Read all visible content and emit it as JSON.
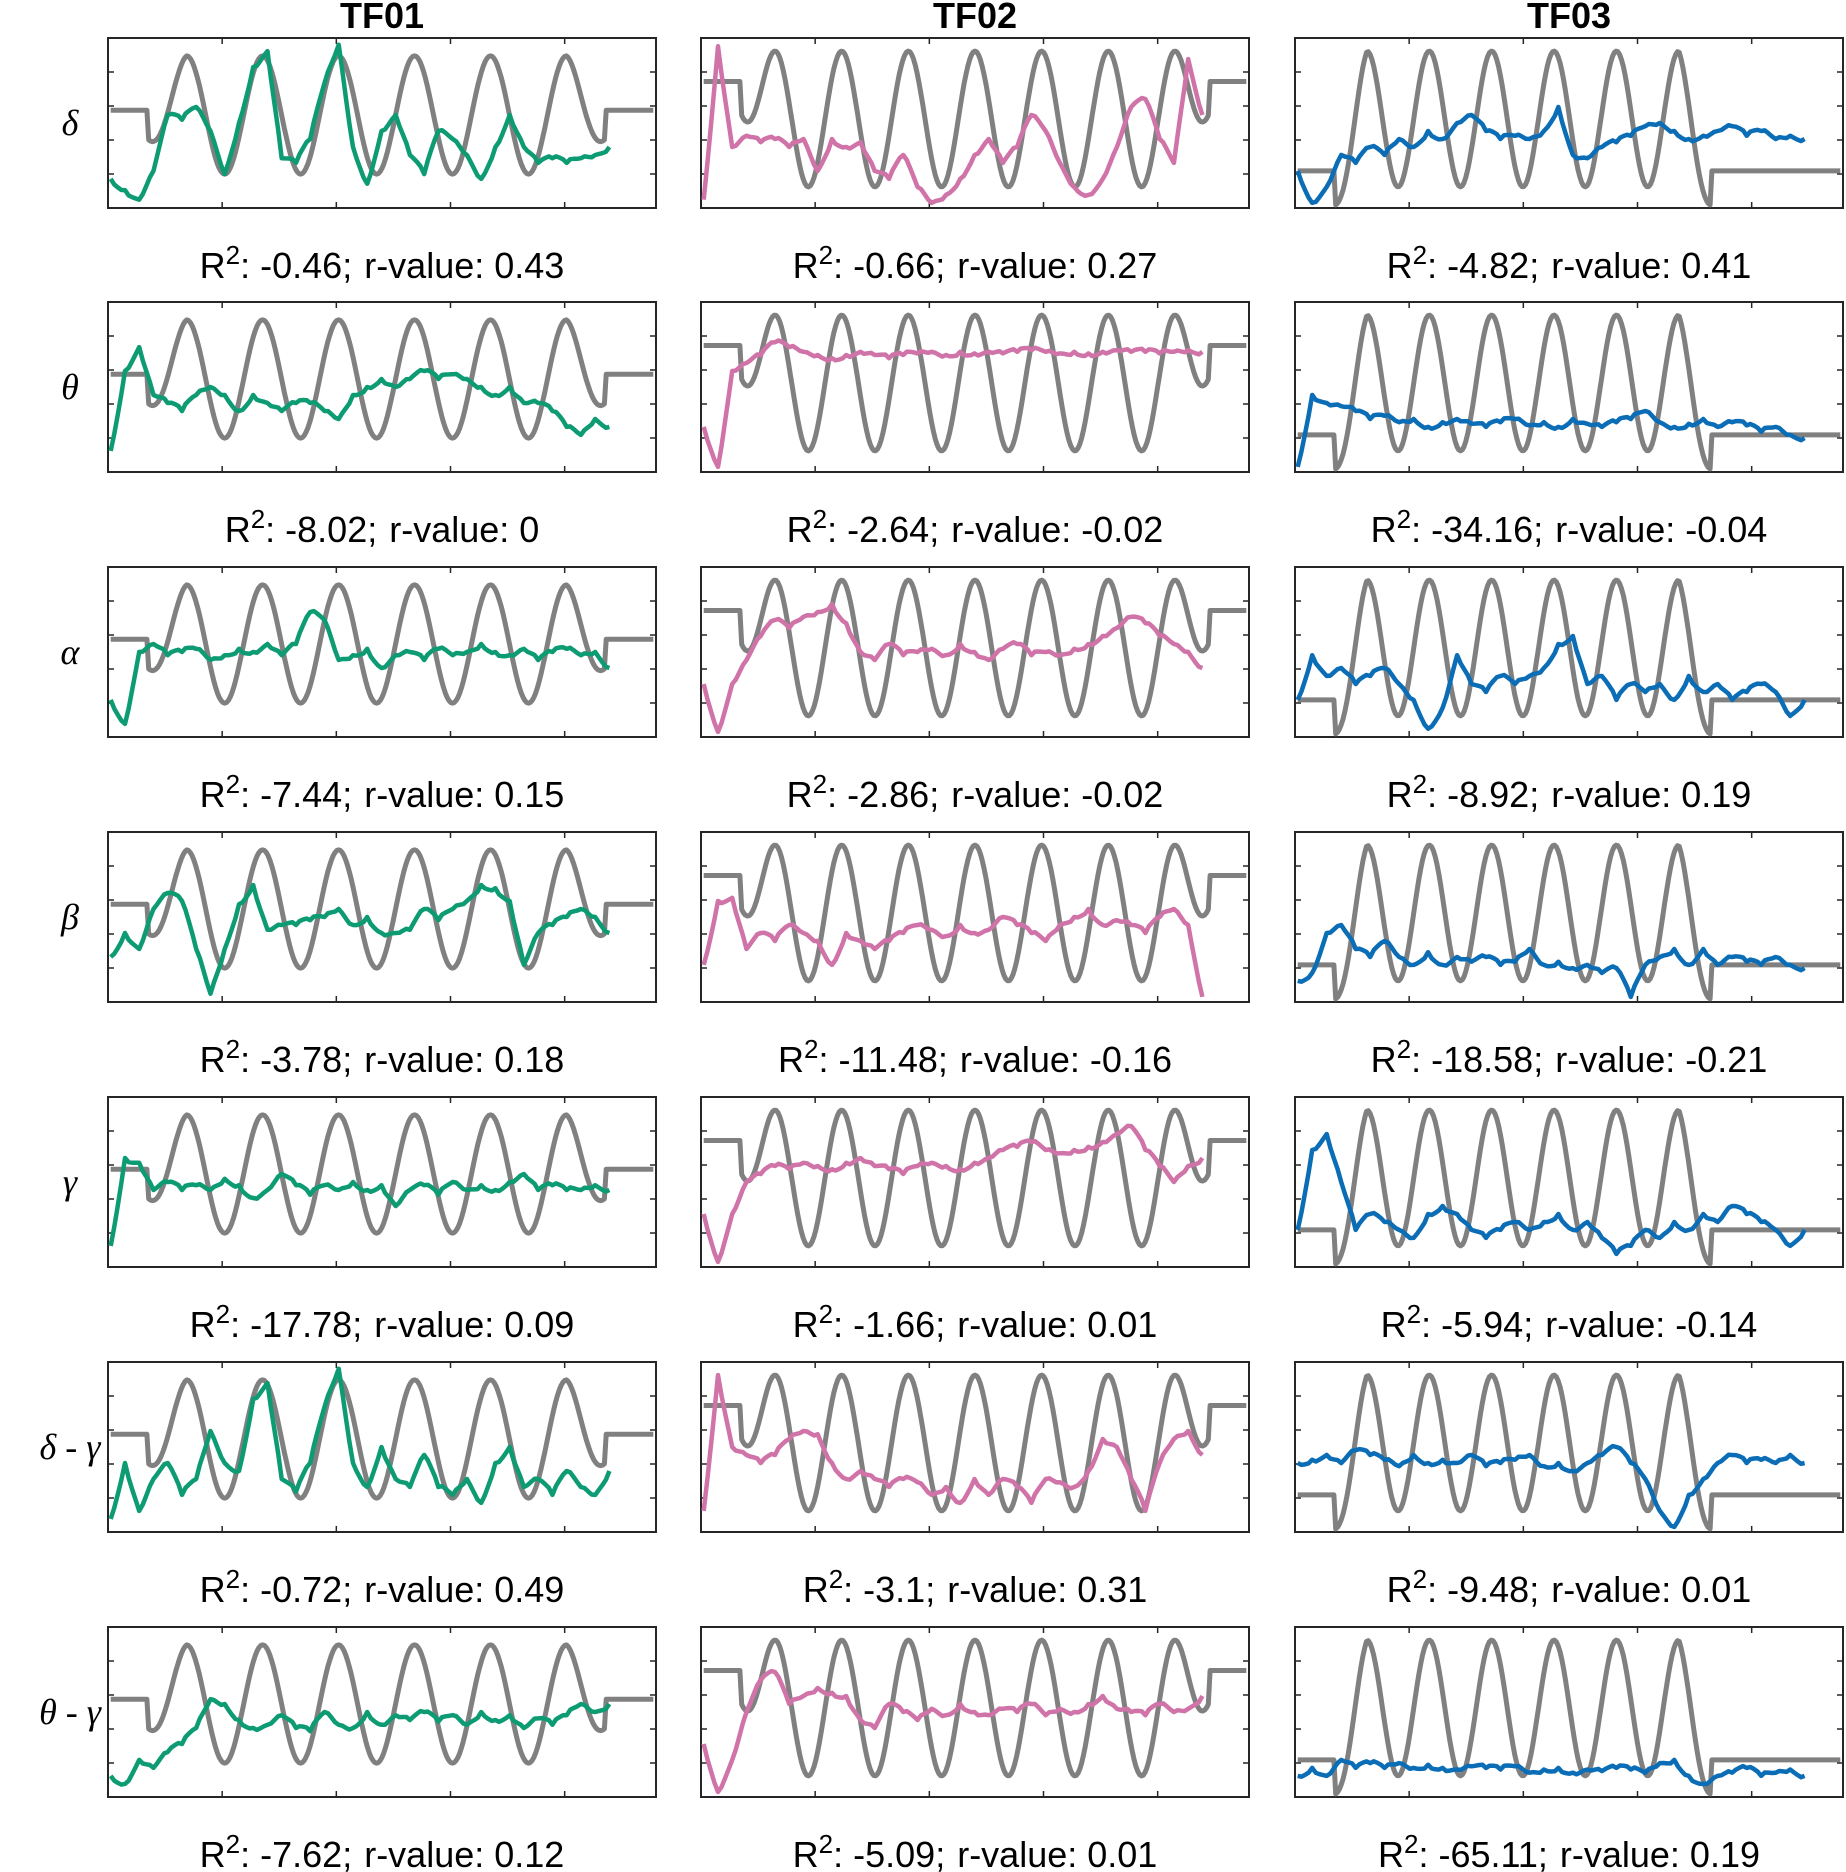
{
  "chart_data": {
    "type": "line",
    "columns": [
      "TF01",
      "TF02",
      "TF03"
    ],
    "rows": [
      "δ",
      "θ",
      "α",
      "β",
      "γ",
      "δ - γ",
      "θ - γ"
    ],
    "r2_label": "R",
    "r2_sup": "2",
    "r_label": "r-value",
    "stats": [
      [
        {
          "r2": "-0.46",
          "r": "0.43"
        },
        {
          "r2": "-0.66",
          "r": "0.27"
        },
        {
          "r2": "-4.82",
          "r": "0.41"
        }
      ],
      [
        {
          "r2": "-8.02",
          "r": "0"
        },
        {
          "r2": "-2.64",
          "r": "-0.02"
        },
        {
          "r2": "-34.16",
          "r": "-0.04"
        }
      ],
      [
        {
          "r2": "-7.44",
          "r": "0.15"
        },
        {
          "r2": "-2.86",
          "r": "-0.02"
        },
        {
          "r2": "-8.92",
          "r": "0.19"
        }
      ],
      [
        {
          "r2": "-3.78",
          "r": "0.18"
        },
        {
          "r2": "-11.48",
          "r": "-0.16"
        },
        {
          "r2": "-18.58",
          "r": "-0.21"
        }
      ],
      [
        {
          "r2": "-17.78",
          "r": "0.09"
        },
        {
          "r2": "-1.66",
          "r": "0.01"
        },
        {
          "r2": "-5.94",
          "r": "-0.14"
        }
      ],
      [
        {
          "r2": "-0.72",
          "r": "0.49"
        },
        {
          "r2": "-3.1",
          "r": "0.31"
        },
        {
          "r2": "-9.48",
          "r": "0.01"
        }
      ],
      [
        {
          "r2": "-7.62",
          "r": "0.12"
        },
        {
          "r2": "-5.09",
          "r": "0.01"
        },
        {
          "r2": "-65.11",
          "r": "0.19"
        }
      ]
    ],
    "reference": [
      {
        "baseline": 0.58,
        "peak": 0.92,
        "trough": 0.18,
        "start": 0.07,
        "end": 0.91,
        "cycles": 6
      },
      {
        "baseline": 0.76,
        "peak": 0.95,
        "trough": 0.1,
        "start": 0.07,
        "end": 0.93,
        "cycles": 7
      },
      {
        "baseline": 0.2,
        "peak": 0.95,
        "trough": 0.1,
        "start": 0.07,
        "end": 0.76,
        "cycles": 6
      }
    ],
    "predicted": [
      [
        [
          0.15,
          0.08,
          0.02,
          0.2,
          0.55,
          0.52,
          0.6,
          0.45,
          0.18,
          0.5,
          0.85,
          0.95,
          0.28,
          0.25,
          0.4,
          0.75,
          0.99,
          0.35,
          0.12,
          0.45,
          0.55,
          0.3,
          0.18,
          0.45,
          0.4,
          0.3,
          0.15,
          0.35,
          0.55,
          0.35,
          0.25,
          0.28,
          0.25,
          0.28,
          0.3,
          0.35
        ],
        [
          0.1,
          0.6,
          0.75,
          0.45,
          0.4,
          0.35,
          0.45,
          0.5,
          0.45,
          0.35,
          0.45,
          0.4,
          0.35,
          0.4,
          0.4,
          0.35,
          0.3,
          0.45,
          0.5,
          0.55,
          0.5,
          0.55,
          0.6,
          0.55,
          0.58,
          0.55,
          0.5,
          0.45,
          0.5,
          0.4,
          0.4,
          0.35,
          0.25,
          0.2,
          0.3,
          0.25
        ],
        [
          0.2,
          0.05,
          0.5,
          0.55,
          0.48,
          0.5,
          0.52,
          0.45,
          0.48,
          0.52,
          0.5,
          0.55,
          0.48,
          0.55,
          0.75,
          0.7,
          0.45,
          0.48,
          0.52,
          0.4,
          0.48,
          0.5,
          0.45,
          0.52,
          0.48,
          0.5,
          0.55,
          0.5,
          0.48,
          0.52,
          0.45,
          0.5,
          0.52,
          0.48,
          0.5,
          0.4
        ],
        [
          0.25,
          0.4,
          0.3,
          0.55,
          0.65,
          0.6,
          0.3,
          0.02,
          0.3,
          0.58,
          0.7,
          0.42,
          0.45,
          0.45,
          0.48,
          0.5,
          0.55,
          0.45,
          0.5,
          0.4,
          0.4,
          0.42,
          0.55,
          0.48,
          0.55,
          0.6,
          0.7,
          0.68,
          0.6,
          0.2,
          0.4,
          0.45,
          0.5,
          0.55,
          0.5,
          0.4
        ],
        [
          0.1,
          0.65,
          0.62,
          0.45,
          0.5,
          0.45,
          0.48,
          0.45,
          0.52,
          0.48,
          0.4,
          0.45,
          0.55,
          0.48,
          0.42,
          0.48,
          0.45,
          0.5,
          0.45,
          0.48,
          0.35,
          0.45,
          0.48,
          0.42,
          0.5,
          0.45,
          0.48,
          0.45,
          0.5,
          0.55,
          0.45,
          0.48,
          0.45,
          0.45,
          0.48,
          0.45
        ],
        [
          0.05,
          0.4,
          0.1,
          0.3,
          0.4,
          0.2,
          0.3,
          0.6,
          0.4,
          0.35,
          0.8,
          0.9,
          0.3,
          0.22,
          0.4,
          0.75,
          0.99,
          0.4,
          0.25,
          0.5,
          0.3,
          0.25,
          0.45,
          0.25,
          0.2,
          0.3,
          0.15,
          0.4,
          0.5,
          0.25,
          0.3,
          0.2,
          0.35,
          0.25,
          0.2,
          0.35
        ],
        [
          0.1,
          0.05,
          0.2,
          0.15,
          0.25,
          0.3,
          0.4,
          0.58,
          0.55,
          0.45,
          0.4,
          0.42,
          0.48,
          0.4,
          0.38,
          0.5,
          0.42,
          0.4,
          0.5,
          0.42,
          0.48,
          0.45,
          0.5,
          0.44,
          0.48,
          0.42,
          0.5,
          0.45,
          0.48,
          0.4,
          0.46,
          0.42,
          0.48,
          0.55,
          0.5,
          0.55
        ]
      ],
      [
        [
          0.02,
          0.98,
          0.35,
          0.42,
          0.38,
          0.4,
          0.35,
          0.4,
          0.2,
          0.4,
          0.35,
          0.38,
          0.2,
          0.15,
          0.3,
          0.1,
          0.0,
          0.05,
          0.15,
          0.3,
          0.4,
          0.25,
          0.35,
          0.55,
          0.45,
          0.25,
          0.1,
          0.05,
          0.15,
          0.35,
          0.6,
          0.65,
          0.4,
          0.25,
          0.9,
          0.55
        ],
        [
          0.25,
          0.0,
          0.6,
          0.65,
          0.7,
          0.78,
          0.75,
          0.72,
          0.7,
          0.68,
          0.7,
          0.72,
          0.7,
          0.68,
          0.7,
          0.71,
          0.72,
          0.7,
          0.72,
          0.71,
          0.72,
          0.71,
          0.72,
          0.73,
          0.72,
          0.71,
          0.72,
          0.71,
          0.72,
          0.73,
          0.72,
          0.72,
          0.71,
          0.72,
          0.73,
          0.72
        ],
        [
          0.3,
          0.0,
          0.3,
          0.45,
          0.6,
          0.7,
          0.65,
          0.72,
          0.75,
          0.8,
          0.68,
          0.5,
          0.45,
          0.55,
          0.48,
          0.5,
          0.52,
          0.48,
          0.55,
          0.5,
          0.45,
          0.52,
          0.55,
          0.48,
          0.5,
          0.48,
          0.52,
          0.55,
          0.6,
          0.65,
          0.72,
          0.68,
          0.6,
          0.55,
          0.5,
          0.4
        ],
        [
          0.2,
          0.6,
          0.62,
          0.3,
          0.4,
          0.35,
          0.45,
          0.4,
          0.35,
          0.2,
          0.4,
          0.35,
          0.3,
          0.35,
          0.4,
          0.45,
          0.42,
          0.38,
          0.45,
          0.4,
          0.42,
          0.5,
          0.45,
          0.4,
          0.35,
          0.45,
          0.5,
          0.55,
          0.45,
          0.48,
          0.45,
          0.4,
          0.5,
          0.55,
          0.45,
          0.0
        ],
        [
          0.3,
          0.0,
          0.3,
          0.5,
          0.55,
          0.6,
          0.58,
          0.62,
          0.6,
          0.58,
          0.62,
          0.65,
          0.6,
          0.58,
          0.55,
          0.6,
          0.62,
          0.6,
          0.58,
          0.62,
          0.65,
          0.7,
          0.72,
          0.75,
          0.7,
          0.68,
          0.7,
          0.72,
          0.75,
          0.8,
          0.85,
          0.7,
          0.6,
          0.5,
          0.6,
          0.65
        ],
        [
          0.1,
          0.95,
          0.5,
          0.45,
          0.4,
          0.45,
          0.55,
          0.6,
          0.58,
          0.4,
          0.3,
          0.35,
          0.3,
          0.25,
          0.3,
          0.28,
          0.2,
          0.25,
          0.15,
          0.3,
          0.2,
          0.3,
          0.25,
          0.15,
          0.3,
          0.28,
          0.25,
          0.35,
          0.55,
          0.5,
          0.3,
          0.1,
          0.4,
          0.55,
          0.6,
          0.45
        ],
        [
          0.3,
          0.0,
          0.2,
          0.5,
          0.7,
          0.75,
          0.55,
          0.6,
          0.65,
          0.62,
          0.6,
          0.45,
          0.4,
          0.55,
          0.5,
          0.45,
          0.52,
          0.48,
          0.55,
          0.5,
          0.48,
          0.52,
          0.5,
          0.55,
          0.48,
          0.52,
          0.5,
          0.55,
          0.6,
          0.52,
          0.5,
          0.48,
          0.55,
          0.5,
          0.52,
          0.6
        ]
      ],
      [
        [
          0.2,
          0.0,
          0.1,
          0.3,
          0.25,
          0.35,
          0.3,
          0.4,
          0.35,
          0.45,
          0.4,
          0.5,
          0.55,
          0.45,
          0.4,
          0.42,
          0.4,
          0.45,
          0.6,
          0.3,
          0.28,
          0.35,
          0.38,
          0.42,
          0.48,
          0.5,
          0.45,
          0.4,
          0.42,
          0.45,
          0.48,
          0.42,
          0.45,
          0.4,
          0.42,
          0.4
        ],
        [
          0.0,
          0.45,
          0.4,
          0.38,
          0.35,
          0.3,
          0.32,
          0.28,
          0.3,
          0.25,
          0.28,
          0.3,
          0.27,
          0.25,
          0.28,
          0.3,
          0.26,
          0.28,
          0.25,
          0.3,
          0.27,
          0.25,
          0.28,
          0.3,
          0.35,
          0.28,
          0.25,
          0.27,
          0.3,
          0.25,
          0.28,
          0.26,
          0.22,
          0.25,
          0.2,
          0.18
        ],
        [
          0.2,
          0.48,
          0.35,
          0.4,
          0.3,
          0.35,
          0.4,
          0.3,
          0.2,
          0.02,
          0.15,
          0.48,
          0.3,
          0.25,
          0.35,
          0.3,
          0.35,
          0.4,
          0.55,
          0.6,
          0.3,
          0.35,
          0.2,
          0.3,
          0.25,
          0.3,
          0.2,
          0.35,
          0.25,
          0.3,
          0.2,
          0.25,
          0.3,
          0.25,
          0.1,
          0.2
        ],
        [
          0.1,
          0.15,
          0.4,
          0.45,
          0.3,
          0.25,
          0.35,
          0.25,
          0.2,
          0.28,
          0.2,
          0.25,
          0.22,
          0.25,
          0.2,
          0.22,
          0.3,
          0.2,
          0.22,
          0.18,
          0.2,
          0.15,
          0.18,
          0.0,
          0.2,
          0.25,
          0.3,
          0.2,
          0.3,
          0.2,
          0.25,
          0.22,
          0.2,
          0.25,
          0.2,
          0.18
        ],
        [
          0.2,
          0.7,
          0.8,
          0.5,
          0.2,
          0.3,
          0.25,
          0.2,
          0.15,
          0.3,
          0.35,
          0.3,
          0.2,
          0.15,
          0.2,
          0.25,
          0.2,
          0.25,
          0.3,
          0.2,
          0.25,
          0.15,
          0.05,
          0.1,
          0.2,
          0.15,
          0.25,
          0.2,
          0.3,
          0.25,
          0.35,
          0.3,
          0.25,
          0.2,
          0.1,
          0.2
        ],
        [
          0.4,
          0.42,
          0.45,
          0.4,
          0.48,
          0.45,
          0.42,
          0.38,
          0.45,
          0.4,
          0.42,
          0.4,
          0.45,
          0.38,
          0.4,
          0.42,
          0.45,
          0.38,
          0.4,
          0.35,
          0.4,
          0.45,
          0.5,
          0.4,
          0.3,
          0.1,
          0.0,
          0.2,
          0.3,
          0.4,
          0.45,
          0.4,
          0.42,
          0.4,
          0.45,
          0.4
        ],
        [
          0.1,
          0.15,
          0.1,
          0.2,
          0.15,
          0.18,
          0.15,
          0.18,
          0.15,
          0.17,
          0.15,
          0.14,
          0.16,
          0.15,
          0.14,
          0.16,
          0.12,
          0.14,
          0.15,
          0.12,
          0.14,
          0.13,
          0.15,
          0.14,
          0.12,
          0.18,
          0.2,
          0.1,
          0.05,
          0.1,
          0.12,
          0.15,
          0.1,
          0.12,
          0.14,
          0.1
        ]
      ]
    ],
    "colors": {
      "reference": "#808080",
      "series": [
        "#0d9b73",
        "#d073a8",
        "#0a6db5"
      ]
    }
  }
}
